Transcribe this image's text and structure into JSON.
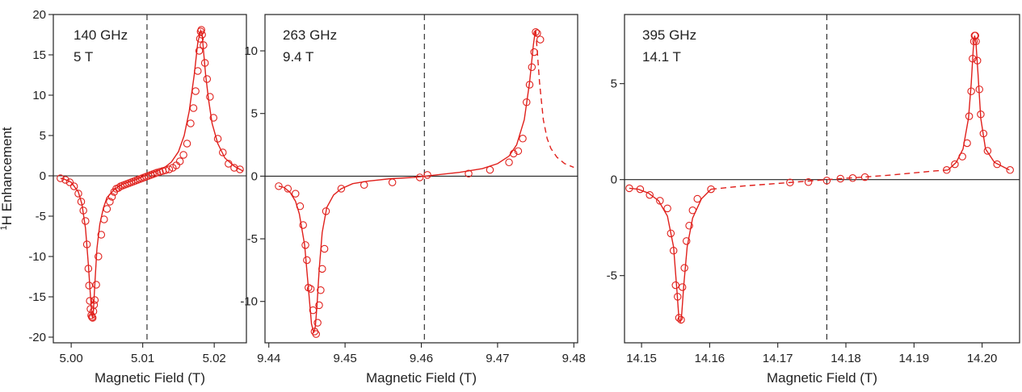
{
  "chart_data": [
    {
      "type": "scatter",
      "panel": "140 GHz",
      "annotations": [
        "140 GHz",
        "5 T"
      ],
      "xlabel": "Magnetic Field (T)",
      "ylabel_sup": "1",
      "ylabel": "H Enhancement",
      "xlim": [
        4.9975,
        5.0245
      ],
      "ylim": [
        -20.7,
        20
      ],
      "xticks": [
        "5.00",
        "5.01",
        "5.02"
      ],
      "xtick_values": [
        5.0,
        5.01,
        5.02
      ],
      "yticks": [
        "20",
        "15",
        "10",
        "5",
        "0",
        "-5",
        "-10",
        "-15",
        "-20"
      ],
      "ytick_values": [
        20,
        15,
        10,
        5,
        0,
        -5,
        -10,
        -15,
        -20
      ],
      "vline": 5.0106,
      "hline": 0,
      "line_color": "#e0201c",
      "fit": {
        "style": "solid",
        "x": [
          4.9985,
          4.999,
          5.0,
          5.001,
          5.0015,
          5.002,
          5.0024,
          5.0027,
          5.0029,
          5.003,
          5.0031,
          5.0033,
          5.0036,
          5.004,
          5.0045,
          5.005,
          5.006,
          5.007,
          5.008,
          5.009,
          5.0095,
          5.01,
          5.0105,
          5.011,
          5.012,
          5.013,
          5.014,
          5.015,
          5.0158,
          5.0165,
          5.0172,
          5.0177,
          5.0181,
          5.0183,
          5.0185,
          5.0188,
          5.0192,
          5.0197,
          5.0205,
          5.0215,
          5.0228,
          5.024
        ],
        "y": [
          -0.3,
          -0.4,
          -0.8,
          -2.0,
          -3.5,
          -6.5,
          -11.0,
          -15.0,
          -17.3,
          -17.6,
          -16.8,
          -13.5,
          -9.0,
          -6.0,
          -4.0,
          -2.7,
          -1.7,
          -1.1,
          -0.8,
          -0.5,
          -0.3,
          -0.1,
          0.1,
          0.3,
          0.6,
          1.0,
          1.7,
          3.0,
          5.0,
          8.0,
          12.5,
          16.5,
          18.0,
          17.6,
          15.5,
          12.5,
          9.5,
          6.5,
          4.0,
          2.2,
          1.2,
          0.6
        ]
      },
      "points": {
        "x": [
          4.9985,
          4.9992,
          4.9998,
          5.0004,
          5.001,
          5.0014,
          5.0017,
          5.002,
          5.0022,
          5.0024,
          5.0025,
          5.0026,
          5.0027,
          5.0028,
          5.0029,
          5.003,
          5.0031,
          5.0032,
          5.0033,
          5.0035,
          5.0038,
          5.0042,
          5.0046,
          5.005,
          5.0054,
          5.0057,
          5.006,
          5.0063,
          5.0066,
          5.0069,
          5.0072,
          5.0075,
          5.0078,
          5.0081,
          5.0084,
          5.0087,
          5.009,
          5.0093,
          5.0096,
          5.0099,
          5.0102,
          5.0105,
          5.0108,
          5.0111,
          5.0114,
          5.0117,
          5.012,
          5.0124,
          5.0128,
          5.0132,
          5.0137,
          5.0142,
          5.0147,
          5.0152,
          5.0157,
          5.0162,
          5.0167,
          5.0171,
          5.0174,
          5.0177,
          5.0179,
          5.018,
          5.0181,
          5.0182,
          5.0183,
          5.0185,
          5.0187,
          5.019,
          5.0194,
          5.0199,
          5.0205,
          5.0212,
          5.022,
          5.0228,
          5.0236
        ],
        "y": [
          -0.3,
          -0.5,
          -0.8,
          -1.3,
          -2.2,
          -3.2,
          -4.3,
          -5.6,
          -8.5,
          -11.5,
          -13.6,
          -15.5,
          -16.5,
          -17.3,
          -17.5,
          -17.6,
          -16.8,
          -16.0,
          -15.4,
          -13.5,
          -10.0,
          -7.3,
          -5.4,
          -4.1,
          -3.2,
          -2.6,
          -2.0,
          -1.6,
          -1.5,
          -1.3,
          -1.2,
          -1.1,
          -1.0,
          -0.9,
          -0.8,
          -0.7,
          -0.6,
          -0.5,
          -0.4,
          -0.3,
          -0.2,
          -0.1,
          0.0,
          0.1,
          0.2,
          0.3,
          0.4,
          0.5,
          0.6,
          0.7,
          0.8,
          1.0,
          1.3,
          1.8,
          2.6,
          4.0,
          6.5,
          8.4,
          10.5,
          13.0,
          15.5,
          17.0,
          17.9,
          18.1,
          17.5,
          16.2,
          14.0,
          12.0,
          9.8,
          7.2,
          4.6,
          2.9,
          1.5,
          1.0,
          0.8
        ]
      }
    },
    {
      "type": "scatter",
      "panel": "263 GHz",
      "annotations": [
        "263 GHz",
        "9.4 T"
      ],
      "xlabel": "Magnetic Field (T)",
      "xlim": [
        9.4395,
        9.4805
      ],
      "ylim": [
        -13.3,
        12.9
      ],
      "xticks": [
        "9.44",
        "9.45",
        "9.46",
        "9.47",
        "9.48"
      ],
      "xtick_values": [
        9.44,
        9.45,
        9.46,
        9.47,
        9.48
      ],
      "yticks": [
        "10",
        "5",
        "0",
        "-5",
        "-10"
      ],
      "ytick_values": [
        10,
        5,
        0,
        -5,
        -10
      ],
      "vline": 9.4604,
      "hline": 0,
      "line_color": "#e0201c",
      "fit": {
        "style": "solid",
        "x": [
          9.4413,
          9.442,
          9.4428,
          9.4435,
          9.444,
          9.4447,
          9.4452,
          9.4456,
          9.4459,
          9.4461,
          9.4463,
          9.4466,
          9.447,
          9.4476,
          9.4485,
          9.4495,
          9.451,
          9.453,
          9.456,
          9.459,
          9.4605,
          9.462,
          9.465,
          9.468,
          9.47,
          9.4715,
          9.4725,
          9.4735,
          9.4742,
          9.4747,
          9.4749,
          9.475
        ],
        "y": [
          -0.8,
          -0.9,
          -1.3,
          -2.0,
          -3.0,
          -5.5,
          -9.0,
          -11.8,
          -12.5,
          -12.0,
          -10.5,
          -7.5,
          -4.5,
          -2.5,
          -1.5,
          -1.0,
          -0.6,
          -0.4,
          -0.2,
          -0.1,
          0.0,
          0.1,
          0.3,
          0.6,
          1.0,
          1.6,
          2.5,
          4.5,
          7.5,
          10.5,
          11.4,
          11.6
        ]
      },
      "fit_extrapolated": {
        "style": "dashed",
        "x": [
          9.475,
          9.4752,
          9.4755,
          9.476,
          9.4765,
          9.477,
          9.4778,
          9.4788,
          9.48
        ],
        "y": [
          11.6,
          10.0,
          7.5,
          4.5,
          3.0,
          2.2,
          1.5,
          1.0,
          0.7
        ]
      },
      "points": {
        "x": [
          9.4413,
          9.4425,
          9.4435,
          9.4441,
          9.4445,
          9.4448,
          9.445,
          9.4452,
          9.4455,
          9.4458,
          9.446,
          9.4462,
          9.4464,
          9.4466,
          9.4468,
          9.447,
          9.4473,
          9.4475,
          9.4495,
          9.4525,
          9.4562,
          9.4598,
          9.4608,
          9.4662,
          9.469,
          9.4715,
          9.4721,
          9.4727,
          9.4733,
          9.4738,
          9.4742,
          9.4745,
          9.4748,
          9.475,
          9.4752,
          9.4756
        ],
        "y": [
          -0.8,
          -1.0,
          -1.4,
          -2.4,
          -3.9,
          -5.5,
          -6.7,
          -8.9,
          -9.0,
          -10.7,
          -12.4,
          -12.6,
          -11.7,
          -10.3,
          -9.1,
          -7.4,
          -5.8,
          -2.8,
          -1.0,
          -0.7,
          -0.5,
          -0.1,
          0.1,
          0.2,
          0.5,
          1.1,
          1.8,
          2.0,
          3.0,
          5.9,
          7.3,
          8.7,
          9.9,
          11.5,
          11.4,
          10.9
        ]
      }
    },
    {
      "type": "scatter",
      "panel": "395 GHz",
      "annotations": [
        "395 GHz",
        "14.1 T"
      ],
      "xlabel": "Magnetic Field (T)",
      "xlim": [
        14.1475,
        14.2055
      ],
      "ylim": [
        -8.5,
        8.6
      ],
      "xticks": [
        "14.15",
        "14.16",
        "14.17",
        "14.18",
        "14.19",
        "14.20"
      ],
      "xtick_values": [
        14.15,
        14.16,
        14.17,
        14.18,
        14.19,
        14.2
      ],
      "yticks": [
        "5",
        "0",
        "-5"
      ],
      "ytick_values": [
        5,
        0,
        -5
      ],
      "vline": 14.1772,
      "hline": 0,
      "line_color": "#e0201c",
      "fit": {
        "style": "solid",
        "x": [
          14.1482,
          14.1495,
          14.151,
          14.1525,
          14.1538,
          14.1547,
          14.1552,
          14.1555,
          14.1557,
          14.1559,
          14.1562,
          14.1567,
          14.1575,
          14.1588,
          14.1602
        ],
        "y": [
          -0.45,
          -0.5,
          -0.7,
          -1.1,
          -1.9,
          -3.5,
          -5.8,
          -7.3,
          -7.4,
          -7.0,
          -5.5,
          -3.5,
          -2.0,
          -1.0,
          -0.5
        ]
      },
      "fit_extrapolated": {
        "style": "dashed",
        "x": [
          14.1602,
          14.165,
          14.17,
          14.1772,
          14.182,
          14.186,
          14.19,
          14.193,
          14.195
        ],
        "y": [
          -0.5,
          -0.33,
          -0.2,
          0.0,
          0.12,
          0.22,
          0.35,
          0.45,
          0.5
        ]
      },
      "fit_peak": {
        "style": "solid",
        "x": [
          14.195,
          14.1962,
          14.1972,
          14.198,
          14.1984,
          14.1987,
          14.1989,
          14.1991,
          14.1994,
          14.1998,
          14.2005,
          14.2018,
          14.204
        ],
        "y": [
          0.5,
          0.9,
          1.6,
          3.2,
          5.0,
          6.8,
          7.5,
          7.1,
          5.5,
          3.2,
          1.6,
          0.9,
          0.5
        ]
      },
      "points": {
        "x": [
          14.1482,
          14.1498,
          14.1512,
          14.1527,
          14.1538,
          14.1543,
          14.1547,
          14.155,
          14.1553,
          14.1555,
          14.1558,
          14.156,
          14.1563,
          14.1566,
          14.157,
          14.1575,
          14.1582,
          14.1602,
          14.1718,
          14.1745,
          14.1772,
          14.1792,
          14.181,
          14.1828,
          14.1948,
          14.196,
          14.1971,
          14.1978,
          14.1981,
          14.1984,
          14.1986,
          14.1988,
          14.1989,
          14.199,
          14.1991,
          14.1993,
          14.1996,
          14.1998,
          14.2002,
          14.2008,
          14.2022,
          14.2041
        ],
        "y": [
          -0.45,
          -0.5,
          -0.8,
          -1.1,
          -1.5,
          -2.8,
          -3.7,
          -5.5,
          -6.1,
          -7.2,
          -7.3,
          -5.6,
          -4.6,
          -3.2,
          -2.4,
          -1.6,
          -1.0,
          -0.5,
          -0.15,
          -0.13,
          -0.05,
          0.05,
          0.08,
          0.13,
          0.5,
          0.8,
          1.2,
          1.9,
          3.3,
          4.6,
          6.3,
          7.2,
          7.5,
          7.5,
          7.2,
          6.2,
          4.7,
          3.4,
          2.4,
          1.5,
          0.8,
          0.5
        ]
      }
    }
  ]
}
